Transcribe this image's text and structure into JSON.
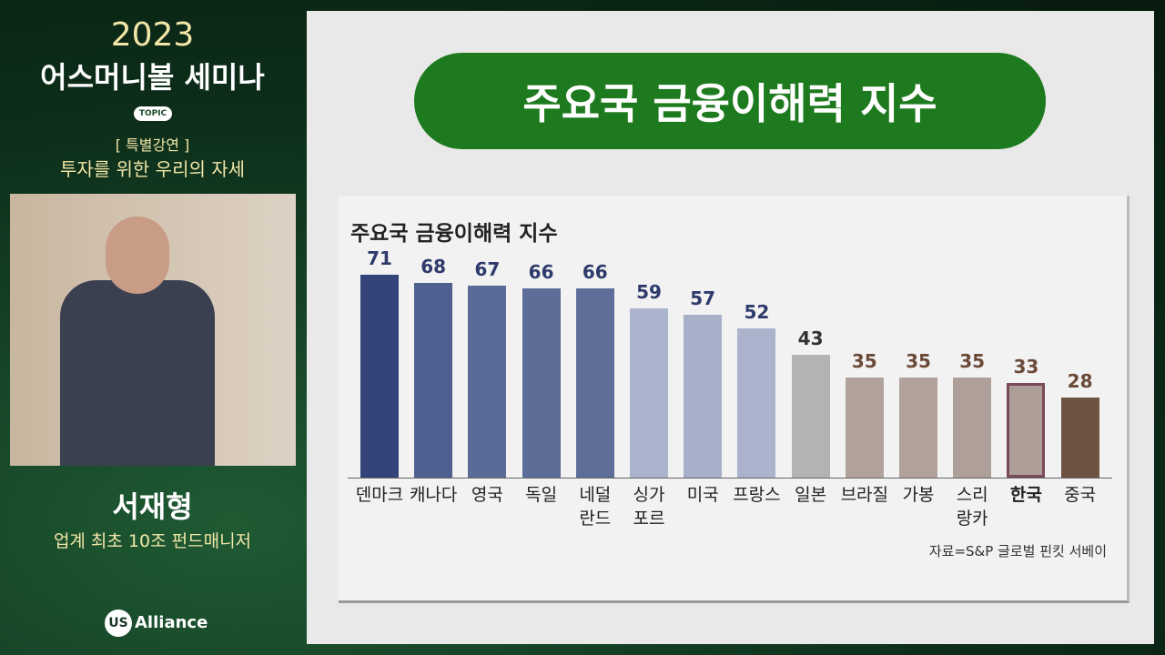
{
  "sidebar": {
    "year": "2023",
    "event": "어스머니볼 세미나",
    "topic_badge": "TOPIC",
    "session": "[ 특별강연 ]",
    "talk_title": "투자를 위한 우리의 자세",
    "speaker": "서재형",
    "speaker_desc": "업계 최초 10조 펀드매니저",
    "logo_mark": "US",
    "logo_text": "Alliance"
  },
  "slide": {
    "header": "주요국 금융이해력 지수"
  },
  "chart_data": {
    "type": "bar",
    "title": "주요국 금융이해력 지수",
    "categories": [
      "덴마크",
      "캐나다",
      "영국",
      "독일",
      "네덜\n란드",
      "싱가\n포르",
      "미국",
      "프랑스",
      "일본",
      "브라질",
      "가봉",
      "스리\n랑카",
      "한국",
      "중국"
    ],
    "values": [
      71,
      68,
      67,
      66,
      66,
      59,
      57,
      52,
      43,
      35,
      35,
      35,
      33,
      28
    ],
    "colors": [
      "#34447a",
      "#4f5f8f",
      "#5b6b97",
      "#5e6d98",
      "#5f6e99",
      "#aab4cd",
      "#a6b0c8",
      "#aab3cb",
      "#b3b3b3",
      "#b1a39c",
      "#b1a39c",
      "#ae9f98",
      "#ad9e97",
      "#6e5342"
    ],
    "label_colors": [
      "#2d3a6b",
      "#2d3a6b",
      "#2d3a6b",
      "#2d3a6b",
      "#2d3a6b",
      "#2d3a6b",
      "#2d3a6b",
      "#2d3a6b",
      "#333333",
      "#6b4a38",
      "#6b4a38",
      "#6b4a38",
      "#6b4a38",
      "#6b4a38"
    ],
    "highlight_index": 12,
    "ylim": [
      0,
      75
    ],
    "source": "자료=S&P 글로벌 핀킷 서베이"
  }
}
